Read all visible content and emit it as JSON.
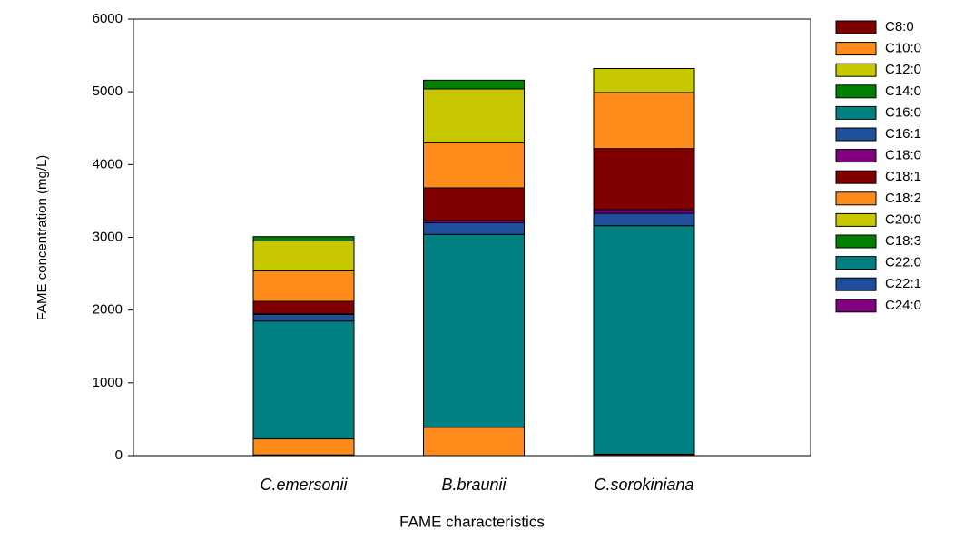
{
  "chart_data": {
    "type": "stacked-bar",
    "x_label": "FAME characteristics",
    "y_label": "FAME concentration (mg/L)",
    "categories": [
      "C.emersonii",
      "B.braunii",
      "C.sorokiniana"
    ],
    "ylim": [
      0,
      6000
    ],
    "yticks": [
      0,
      1000,
      2000,
      3000,
      4000,
      5000,
      6000
    ],
    "series": [
      {
        "name": "C8:0",
        "color": "#800000",
        "values": [
          10,
          0,
          20
        ]
      },
      {
        "name": "C10:0",
        "color": "#ff8c1a",
        "values": [
          220,
          390,
          0
        ]
      },
      {
        "name": "C12:0",
        "color": "#c8c800",
        "values": [
          0,
          0,
          0
        ]
      },
      {
        "name": "C14:0",
        "color": "#008000",
        "values": [
          0,
          0,
          0
        ]
      },
      {
        "name": "C16:0",
        "color": "#008080",
        "values": [
          1620,
          2650,
          3140
        ]
      },
      {
        "name": "C16:1",
        "color": "#1f4e9b",
        "values": [
          90,
          160,
          170
        ]
      },
      {
        "name": "C18:0",
        "color": "#800080",
        "values": [
          10,
          30,
          50
        ]
      },
      {
        "name": "C18:1",
        "color": "#800000",
        "values": [
          170,
          450,
          840
        ]
      },
      {
        "name": "C18:2",
        "color": "#ff8c1a",
        "values": [
          420,
          620,
          770
        ]
      },
      {
        "name": "C20:0",
        "color": "#c8c800",
        "values": [
          410,
          740,
          330
        ]
      },
      {
        "name": "C18:3",
        "color": "#008000",
        "values": [
          60,
          120,
          0
        ]
      },
      {
        "name": "C22:0",
        "color": "#008080",
        "values": [
          0,
          0,
          0
        ]
      },
      {
        "name": "C22:1",
        "color": "#1f4e9b",
        "values": [
          0,
          0,
          0
        ]
      },
      {
        "name": "C24:0",
        "color": "#800080",
        "values": [
          0,
          0,
          0
        ]
      }
    ]
  }
}
